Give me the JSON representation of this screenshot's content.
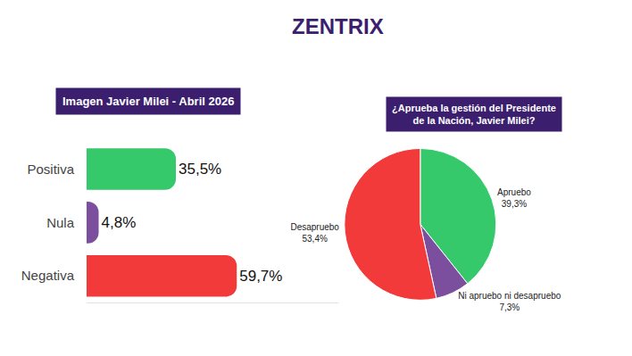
{
  "header": {
    "brand": "ZENTRIX"
  },
  "chart_data": [
    {
      "type": "bar",
      "title": "Imagen Javier Milei - Abril 2026",
      "categories": [
        "Positiva",
        "Nula",
        "Negativa"
      ],
      "values": [
        35.5,
        4.8,
        59.7
      ],
      "value_labels": [
        "35,5%",
        "4,8%",
        "59,7%"
      ],
      "colors": [
        "#35c96b",
        "#7b4f9e",
        "#f23a3a"
      ],
      "orientation": "horizontal",
      "data_labels": true,
      "tick_labels": "y",
      "xlim": [
        0,
        100
      ],
      "grid": false
    },
    {
      "type": "pie",
      "title": [
        "¿Aprueba la gestión del Presidente",
        "de la Nación, Javier Milei?"
      ],
      "categories": [
        "Apruebo",
        "Ni apruebo ni desapruebo",
        "Desapruebo"
      ],
      "values": [
        39.3,
        7.3,
        53.4
      ],
      "value_labels": [
        "39,3%",
        "7,3%",
        "53,4%"
      ],
      "colors": [
        "#35c96b",
        "#7b4f9e",
        "#f23a3a"
      ],
      "data_labels": true
    }
  ]
}
